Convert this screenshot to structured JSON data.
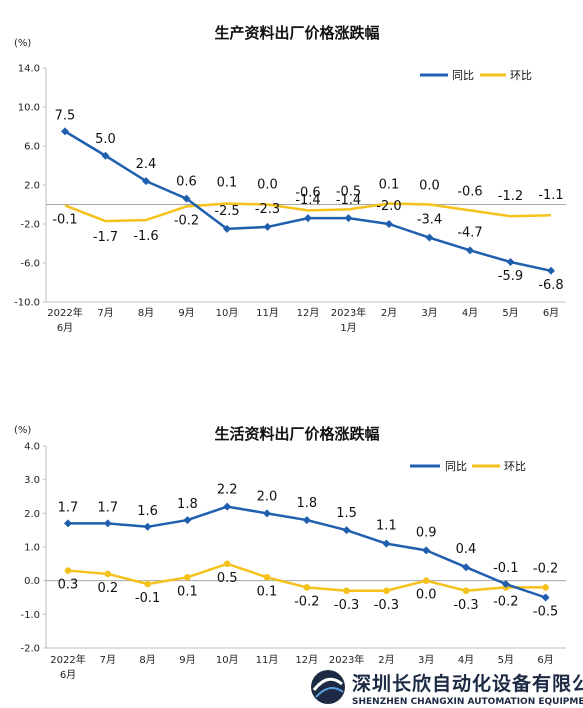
{
  "watermark": {
    "name_cn": "深圳长欣自动化设备有限公司",
    "name_en": "SHENZHEN CHANGXIN AUTOMATION EQUIPMENT CO.,LTD"
  },
  "chart_data": [
    {
      "type": "line",
      "title": "生产资料出厂价格涨跌幅",
      "ylabel": "(%)",
      "ylim": [
        -10.0,
        14.0
      ],
      "yticks": [
        "14.0",
        "10.0",
        "6.0",
        "2.0",
        "-2.0",
        "-6.0",
        "-10.0"
      ],
      "ytick_values": [
        14,
        10,
        6,
        2,
        -2,
        -6,
        -10
      ],
      "categories": [
        "2022年6月",
        "7月",
        "8月",
        "9月",
        "10月",
        "11月",
        "12月",
        "2023年1月",
        "2月",
        "3月",
        "4月",
        "5月",
        "6月"
      ],
      "category_lines": [
        [
          "2022年",
          "6月"
        ],
        [
          "7月"
        ],
        [
          "8月"
        ],
        [
          "9月"
        ],
        [
          "10月"
        ],
        [
          "11月"
        ],
        [
          "12月"
        ],
        [
          "2023年",
          "1月"
        ],
        [
          "2月"
        ],
        [
          "3月"
        ],
        [
          "4月"
        ],
        [
          "5月"
        ],
        [
          "6月"
        ]
      ],
      "legend_position": "top-right",
      "series": [
        {
          "name": "同比",
          "color": "#1f5fae",
          "marker": "diamond",
          "values": [
            7.5,
            5.0,
            2.4,
            0.6,
            -2.5,
            -2.3,
            -1.4,
            -1.4,
            -2.0,
            -3.4,
            -4.7,
            -5.9,
            -6.8
          ],
          "labels": [
            "7.5",
            "5.0",
            "2.4",
            "0.6",
            "-2.5",
            "-2.3",
            "-1.4",
            "-1.4",
            "-2.0",
            "-3.4",
            "-4.7",
            "-5.9",
            "-6.8"
          ]
        },
        {
          "name": "环比",
          "color": "#f5c21b",
          "marker": "none",
          "values": [
            -0.1,
            -1.7,
            -1.6,
            -0.2,
            0.1,
            0.0,
            -0.6,
            -0.5,
            0.1,
            0.0,
            -0.6,
            -1.2,
            -1.1
          ],
          "labels": [
            "-0.1",
            "-1.7",
            "-1.6",
            "-0.2",
            "0.1",
            "0.0",
            "-0.6",
            "-0.5",
            "0.1",
            "0.0",
            "-0.6",
            "-1.2",
            "-1.1"
          ]
        }
      ]
    },
    {
      "type": "line",
      "title": "生活资料出厂价格涨跌幅",
      "ylabel": "(%)",
      "ylim": [
        -2.0,
        4.0
      ],
      "yticks": [
        "4.0",
        "3.0",
        "2.0",
        "1.0",
        "0.0",
        "-1.0",
        "-2.0"
      ],
      "ytick_values": [
        4,
        3,
        2,
        1,
        0,
        -1,
        -2
      ],
      "categories": [
        "2022年6月",
        "7月",
        "8月",
        "9月",
        "10月",
        "11月",
        "12月",
        "2023年",
        "2月",
        "3月",
        "4月",
        "5月",
        "6月"
      ],
      "category_lines": [
        [
          "2022年",
          "6月"
        ],
        [
          "7月"
        ],
        [
          "8月"
        ],
        [
          "9月"
        ],
        [
          "10月"
        ],
        [
          "11月"
        ],
        [
          "12月"
        ],
        [
          "2023年"
        ],
        [
          "2月"
        ],
        [
          "3月"
        ],
        [
          "4月"
        ],
        [
          "5月"
        ],
        [
          "6月"
        ]
      ],
      "legend_position": "top-right",
      "series": [
        {
          "name": "同比",
          "color": "#1f5fae",
          "marker": "diamond",
          "values": [
            1.7,
            1.7,
            1.6,
            1.8,
            2.2,
            2.0,
            1.8,
            1.5,
            1.1,
            0.9,
            0.4,
            -0.1,
            -0.5
          ],
          "labels": [
            "1.7",
            "1.7",
            "1.6",
            "1.8",
            "2.2",
            "2.0",
            "1.8",
            "1.5",
            "1.1",
            "0.9",
            "0.4",
            "-0.1",
            "-0.5"
          ]
        },
        {
          "name": "环比",
          "color": "#f5c21b",
          "marker": "circle",
          "values": [
            0.3,
            0.2,
            -0.1,
            0.1,
            0.5,
            0.1,
            -0.2,
            -0.3,
            -0.3,
            0.0,
            -0.3,
            -0.2,
            -0.2
          ],
          "labels": [
            "0.3",
            "0.2",
            "-0.1",
            "0.1",
            "0.5",
            "0.1",
            "-0.2",
            "-0.3",
            "-0.3",
            "0.0",
            "-0.3",
            "-0.2",
            "-0.2"
          ]
        }
      ]
    }
  ]
}
